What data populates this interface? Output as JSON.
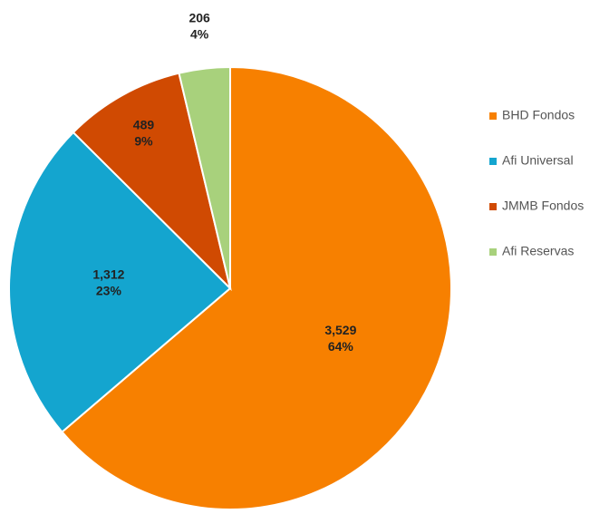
{
  "chart_data": {
    "type": "pie",
    "categories": [
      "BHD Fondos",
      "Afi Universal",
      "JMMB Fondos",
      "Afi Reservas"
    ],
    "values": [
      3529,
      1312,
      489,
      206
    ],
    "value_labels": [
      "3,529",
      "1,312",
      "489",
      "206"
    ],
    "percentages": [
      64,
      23,
      9,
      4
    ],
    "percentage_labels": [
      "64%",
      "23%",
      "9%",
      "4%"
    ],
    "colors": [
      "#f78000",
      "#14a5cf",
      "#d04a02",
      "#a8d17c"
    ],
    "legend": "right"
  }
}
